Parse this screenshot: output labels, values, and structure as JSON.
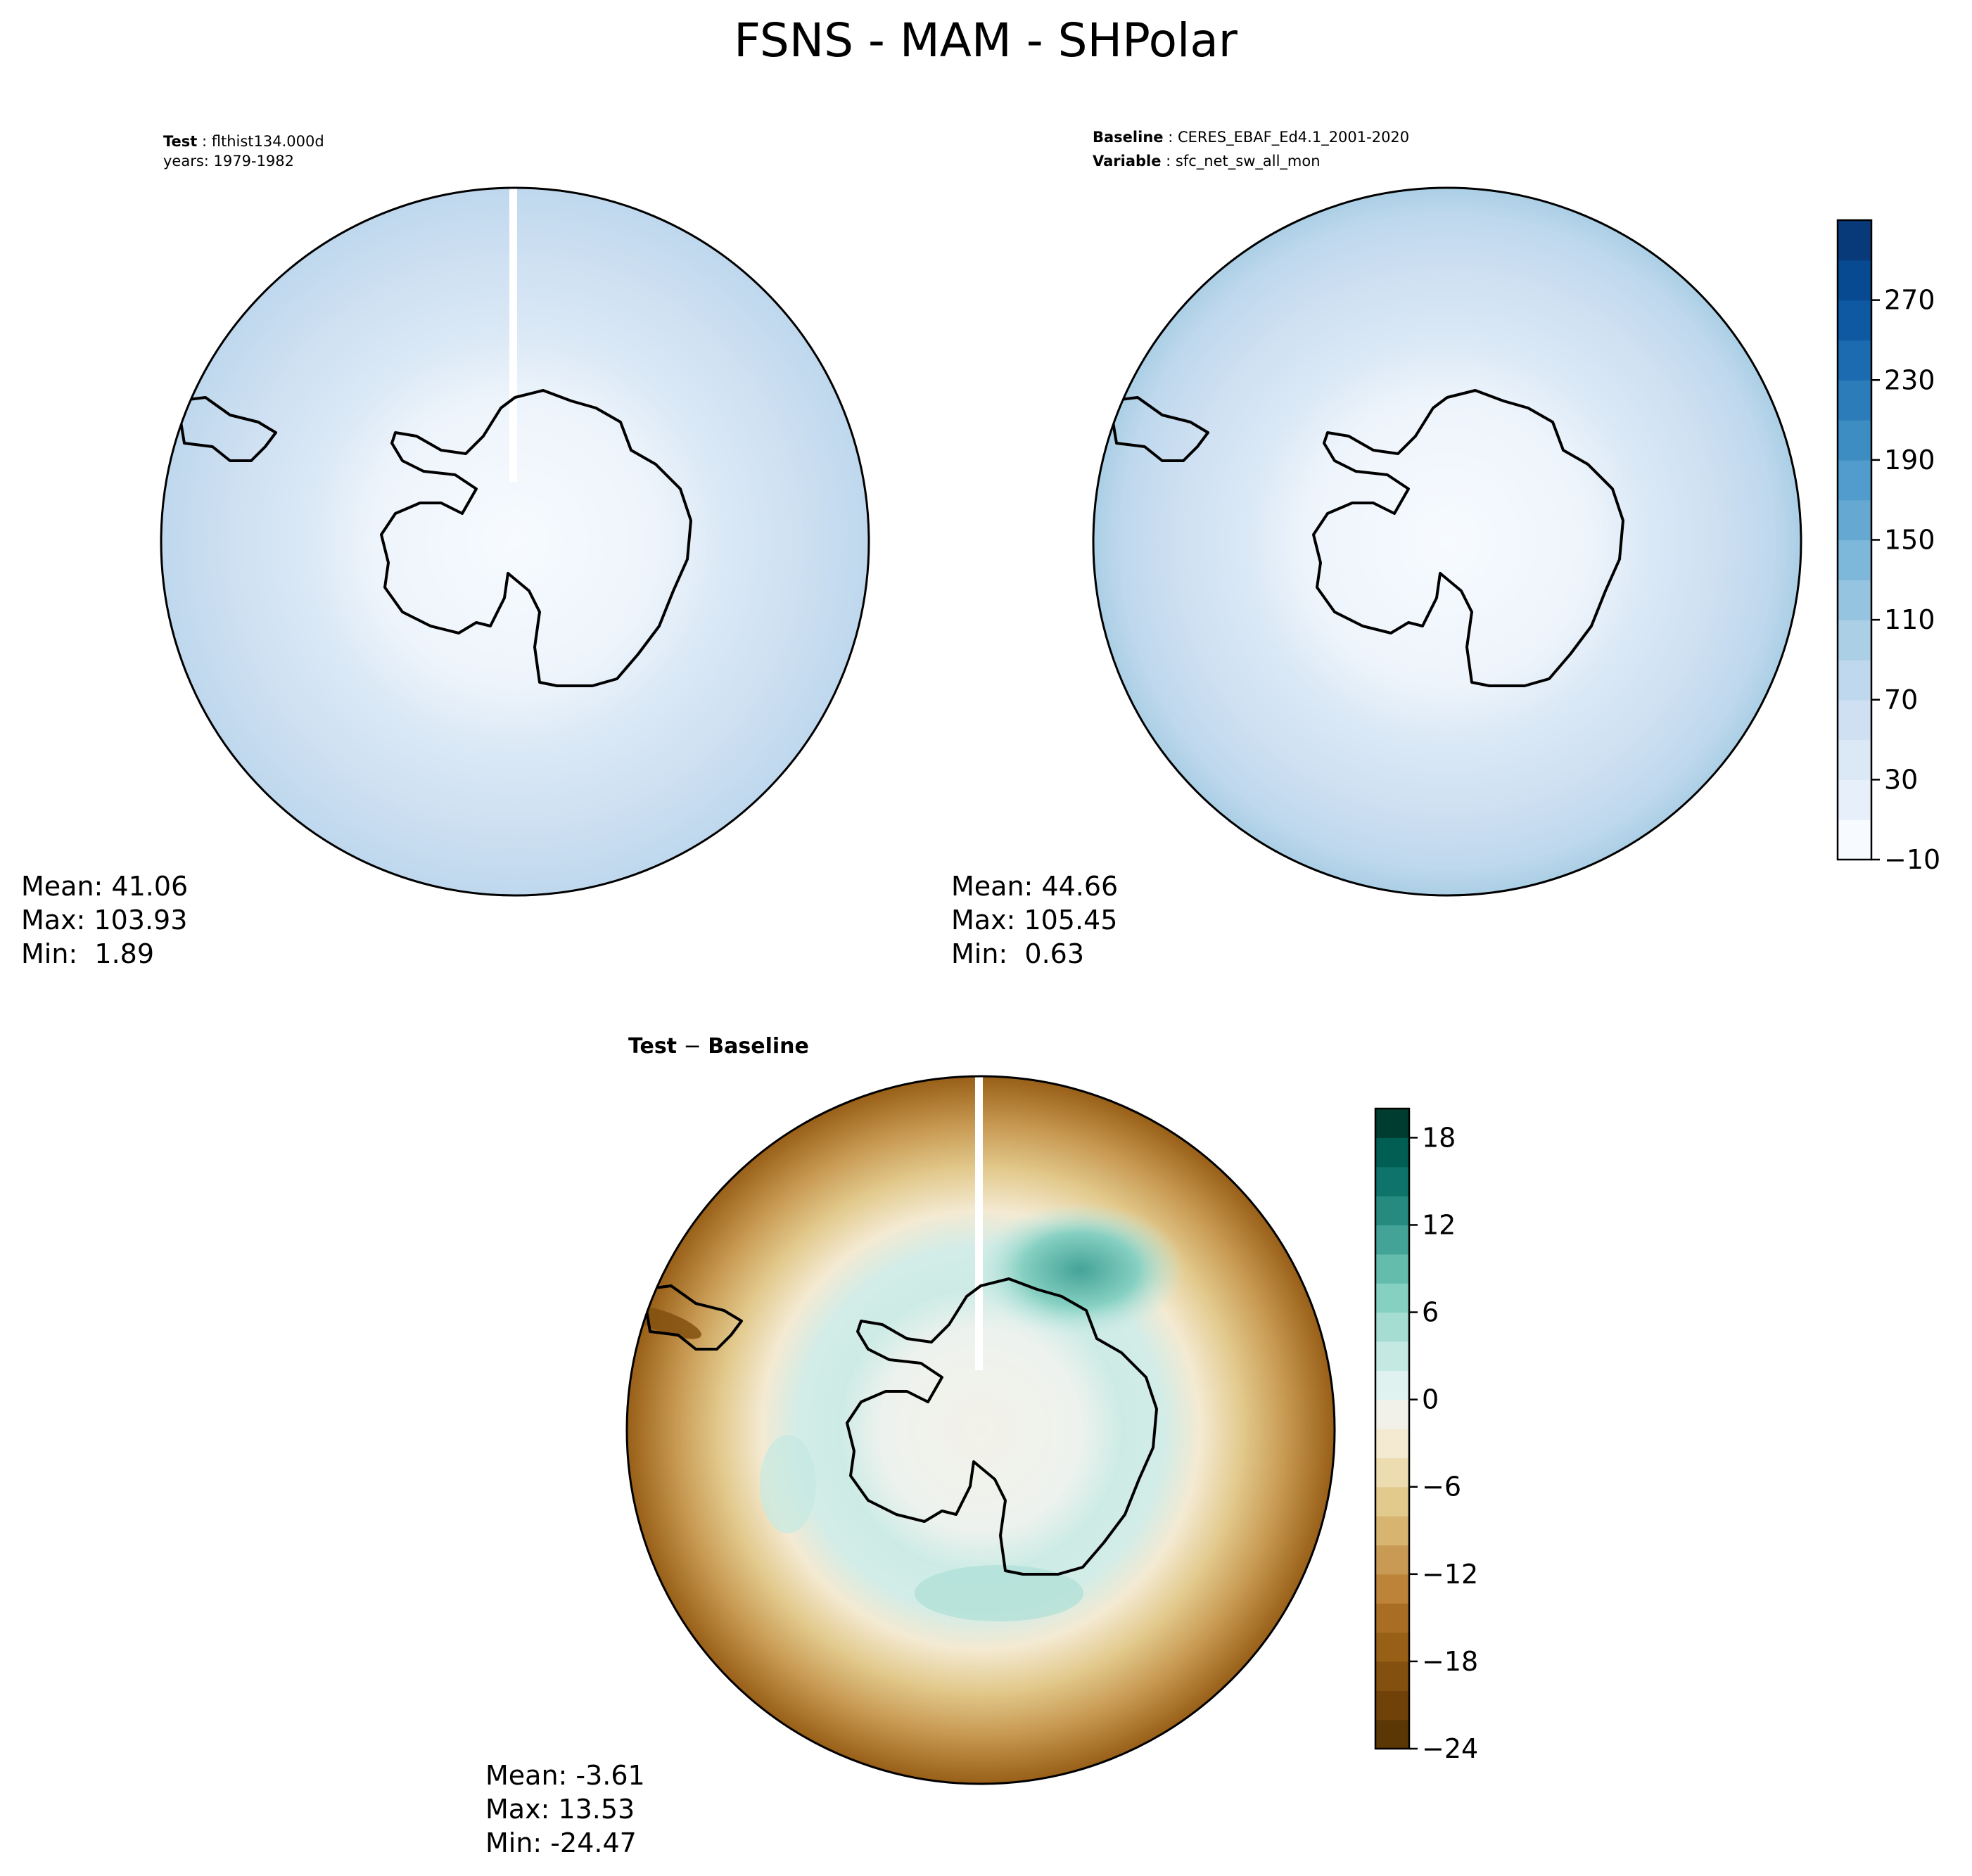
{
  "figure": {
    "title": "FSNS - MAM - SHPolar"
  },
  "panels": [
    {
      "id": "test",
      "meta": [
        {
          "label": "Test",
          "value": "flthist134.000d"
        },
        {
          "label": "",
          "value": "years: 1979-1982"
        }
      ],
      "stats": {
        "mean": "Mean: 41.06",
        "max": "Max: 103.93",
        "min": "Min:  1.89"
      }
    },
    {
      "id": "baseline",
      "meta": [
        {
          "label": "Baseline",
          "value": "CERES_EBAF_Ed4.1_2001-2020"
        },
        {
          "label": "Variable",
          "value": "sfc_net_sw_all_mon"
        }
      ],
      "stats": {
        "mean": "Mean: 44.66",
        "max": "Max: 105.45",
        "min": "Min:  0.63"
      }
    },
    {
      "id": "diff",
      "title_left": "Test",
      "title_sep": "−",
      "title_right": "Baseline",
      "stats": {
        "mean": "Mean: -3.61",
        "max": "Max: 13.53",
        "min": "Min: -24.47"
      }
    }
  ],
  "colorbars": {
    "main": {
      "ticks": [
        "−10",
        "30",
        "70",
        "110",
        "150",
        "190",
        "230",
        "270"
      ],
      "colors": [
        "#f7fbff",
        "#e7f0fa",
        "#dbe9f6",
        "#cee0f2",
        "#bfd8ed",
        "#abcfe5",
        "#94c4df",
        "#7db8da",
        "#65a9d3",
        "#519ccc",
        "#3d8dc3",
        "#2c7cba",
        "#1c6aaf",
        "#0e59a2",
        "#084a91",
        "#083a7a"
      ]
    },
    "diff": {
      "ticks": [
        "−24",
        "−18",
        "−12",
        "−6",
        "0",
        "6",
        "12",
        "18"
      ],
      "colors": [
        "#5c3706",
        "#70420a",
        "#83500f",
        "#985f17",
        "#a96e23",
        "#bc8339",
        "#c89a53",
        "#d7b570",
        "#e2c98c",
        "#ecdcb0",
        "#f4ead2",
        "#f2f1e9",
        "#e0f2ef",
        "#c4e9e3",
        "#a6ddd3",
        "#86d0c2",
        "#64bcad",
        "#44a397",
        "#268a80",
        "#0e736a",
        "#015e53",
        "#003c30"
      ]
    }
  }
}
